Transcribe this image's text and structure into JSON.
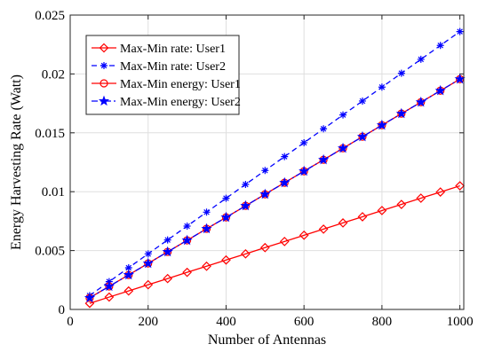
{
  "chart_data": {
    "type": "line",
    "title": "",
    "xlabel": "Number of Antennas",
    "ylabel": "Energy Harvesting Rate (Watt)",
    "xlim": [
      0,
      1010
    ],
    "ylim": [
      0,
      0.025
    ],
    "xticks": [
      0,
      200,
      400,
      600,
      800,
      1000
    ],
    "xtick_labels": [
      "0",
      "200",
      "400",
      "600",
      "800",
      "1000"
    ],
    "yticks": [
      0,
      0.005,
      0.01,
      0.015,
      0.02,
      0.025
    ],
    "ytick_labels": [
      "0",
      "0.005",
      "0.01",
      "0.015",
      "0.02",
      "0.025"
    ],
    "grid": true,
    "legend_position": "top-left",
    "x": [
      50,
      100,
      150,
      200,
      250,
      300,
      350,
      400,
      450,
      500,
      550,
      600,
      650,
      700,
      750,
      800,
      850,
      900,
      950,
      1000
    ],
    "series": [
      {
        "name": "Max-Min rate: User1",
        "color": "#ff0000",
        "line": "solid",
        "marker": "diamond",
        "values": [
          0.00052,
          0.00105,
          0.00157,
          0.0021,
          0.00262,
          0.00315,
          0.00367,
          0.0042,
          0.00472,
          0.00525,
          0.00577,
          0.0063,
          0.00682,
          0.00735,
          0.00787,
          0.0084,
          0.00892,
          0.00945,
          0.00997,
          0.0105
        ]
      },
      {
        "name": "Max-Min rate: User2",
        "color": "#0000ff",
        "line": "dashed",
        "marker": "asterisk",
        "values": [
          0.00118,
          0.00236,
          0.00354,
          0.00472,
          0.0059,
          0.00708,
          0.00826,
          0.00944,
          0.01062,
          0.0118,
          0.01298,
          0.01416,
          0.01534,
          0.01652,
          0.0177,
          0.01888,
          0.02006,
          0.02124,
          0.02242,
          0.0236
        ]
      },
      {
        "name": "Max-Min energy: User1",
        "color": "#ff0000",
        "line": "solid",
        "marker": "circle",
        "values": [
          0.00098,
          0.00196,
          0.00293,
          0.00391,
          0.00489,
          0.00587,
          0.00685,
          0.00782,
          0.0088,
          0.00978,
          0.01076,
          0.01174,
          0.01271,
          0.01369,
          0.01467,
          0.01565,
          0.01663,
          0.0176,
          0.01858,
          0.01956
        ]
      },
      {
        "name": "Max-Min energy: User2",
        "color": "#0000ff",
        "line": "dashdot",
        "marker": "star",
        "values": [
          0.00098,
          0.00196,
          0.00293,
          0.00391,
          0.00489,
          0.00587,
          0.00685,
          0.00782,
          0.0088,
          0.00978,
          0.01076,
          0.01174,
          0.01271,
          0.01369,
          0.01467,
          0.01565,
          0.01663,
          0.0176,
          0.01858,
          0.01956
        ]
      }
    ]
  }
}
